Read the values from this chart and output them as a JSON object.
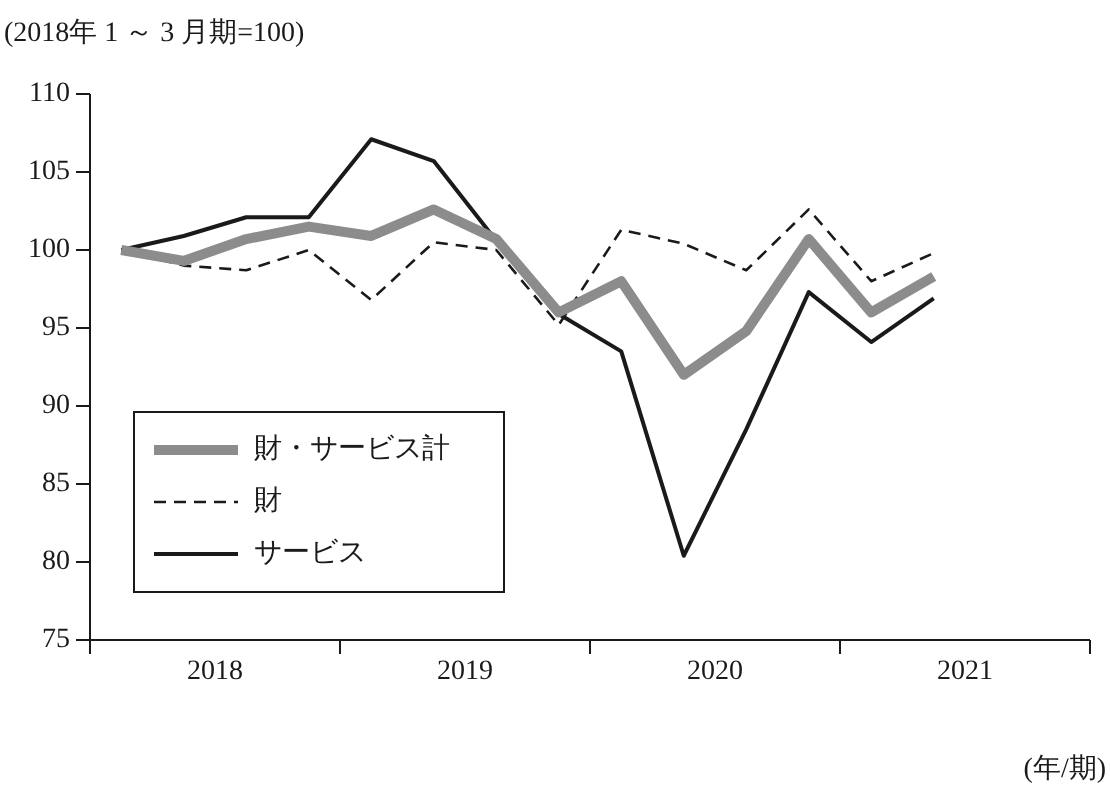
{
  "chart_data": {
    "type": "line",
    "ylabel": "(2018年 1 ～ 3 月期=100)",
    "xlabel": "(年/期)",
    "x": [
      2018.125,
      2018.375,
      2018.625,
      2018.875,
      2019.125,
      2019.375,
      2019.625,
      2019.875,
      2020.125,
      2020.375,
      2020.625,
      2020.875,
      2021.125,
      2021.375
    ],
    "xlim": [
      2018,
      2022
    ],
    "xticks": [
      {
        "value": 2018,
        "label": null
      },
      {
        "value": 2018.5,
        "label": "2018"
      },
      {
        "value": 2019,
        "label": null
      },
      {
        "value": 2019.5,
        "label": "2019"
      },
      {
        "value": 2020,
        "label": null
      },
      {
        "value": 2020.5,
        "label": "2020"
      },
      {
        "value": 2021,
        "label": null
      },
      {
        "value": 2021.5,
        "label": "2021"
      },
      {
        "value": 2022,
        "label": null
      }
    ],
    "ylim": [
      75,
      110
    ],
    "yticks": [
      75,
      80,
      85,
      90,
      95,
      100,
      105,
      110
    ],
    "series": [
      {
        "name": "財・サービス計",
        "color": "#8c8c8c",
        "line_style": "solid",
        "values": [
          100,
          99.3,
          100.7,
          101.5,
          100.9,
          102.6,
          100.7,
          96.0,
          98.0,
          92.0,
          94.8,
          100.7,
          96.0,
          98.3
        ]
      },
      {
        "name": "財",
        "color": "#1a1a1a",
        "line_style": "dashed",
        "values": [
          100,
          99.0,
          98.7,
          100.0,
          96.8,
          100.5,
          100.0,
          95.2,
          101.3,
          100.4,
          98.7,
          102.6,
          98.0,
          99.8
        ]
      },
      {
        "name": "サービス",
        "color": "#1a1a1a",
        "line_style": "solid",
        "values": [
          100,
          100.9,
          102.1,
          102.1,
          107.1,
          105.7,
          100.6,
          95.9,
          93.5,
          80.4,
          88.5,
          97.3,
          94.1,
          96.9
        ]
      }
    ],
    "grid": false,
    "legend": "bottom left",
    "marker": "none"
  }
}
